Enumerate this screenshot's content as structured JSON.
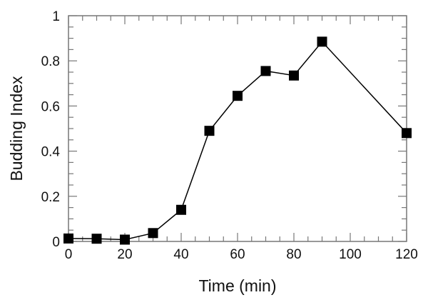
{
  "chart_data": {
    "type": "line",
    "title": "",
    "xlabel": "Time (min)",
    "ylabel": "Budding Index",
    "xlim": [
      0,
      120
    ],
    "ylim": [
      0,
      1
    ],
    "x_ticks": [
      0,
      20,
      40,
      60,
      80,
      100,
      120
    ],
    "x_tick_labels": [
      "0",
      "20",
      "40",
      "60",
      "80",
      "100",
      "120"
    ],
    "y_ticks": [
      0,
      0.2,
      0.4,
      0.6,
      0.8,
      1
    ],
    "y_tick_labels": [
      "0",
      "0.2",
      "0.4",
      "0.6",
      "0.8",
      "1"
    ],
    "grid": false,
    "legend": null,
    "marker": "filled-square",
    "series": [
      {
        "name": "Budding Index",
        "color": "#000000",
        "x": [
          0,
          10,
          20,
          30,
          40,
          50,
          60,
          70,
          80,
          90,
          120
        ],
        "values": [
          0.013,
          0.012,
          0.008,
          0.037,
          0.14,
          0.49,
          0.645,
          0.755,
          0.735,
          0.885,
          0.48
        ]
      }
    ]
  }
}
